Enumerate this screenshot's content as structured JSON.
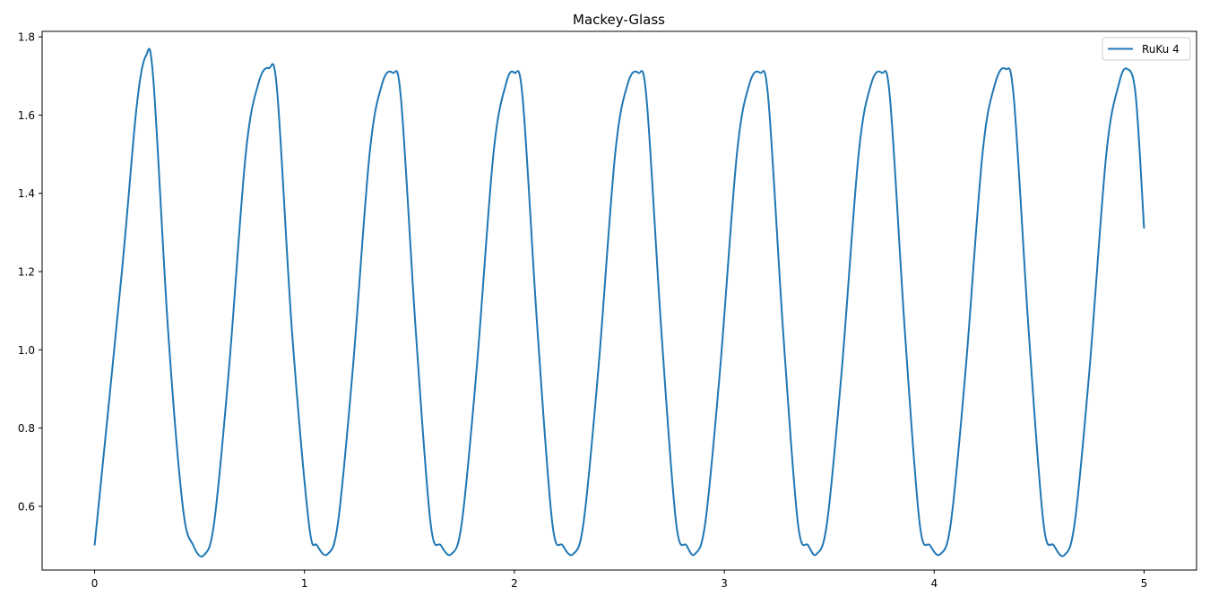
{
  "chart_data": {
    "type": "line",
    "title": "Mackey-Glass",
    "xlabel": "",
    "ylabel": "",
    "xlim": [
      -0.25,
      5.25
    ],
    "ylim": [
      0.437,
      1.814
    ],
    "xticks": [
      0,
      1,
      2,
      3,
      4,
      5
    ],
    "xtick_labels": [
      "0",
      "1",
      "2",
      "3",
      "4",
      "5"
    ],
    "yticks": [
      0.6,
      0.8,
      1.0,
      1.2,
      1.4,
      1.6,
      1.8
    ],
    "ytick_labels": [
      "0.6",
      "0.8",
      "1.0",
      "1.2",
      "1.4",
      "1.6",
      "1.8"
    ],
    "grid": false,
    "legend_position": "upper right",
    "series": [
      {
        "name": "RuKu 4",
        "color": "#1f77b4",
        "x": [
          0.0,
          0.13,
          0.2,
          0.245,
          0.28,
          0.35,
          0.42,
          0.47,
          0.52,
          0.57,
          0.64,
          0.72,
          0.78,
          0.83,
          0.87,
          0.94,
          1.02,
          1.06,
          1.11,
          1.16,
          1.23,
          1.31,
          1.37,
          1.42,
          1.46,
          1.53,
          1.6,
          1.65,
          1.7,
          1.75,
          1.82,
          1.9,
          1.96,
          2.0,
          2.04,
          2.11,
          2.18,
          2.23,
          2.28,
          2.33,
          2.4,
          2.48,
          2.54,
          2.59,
          2.63,
          2.7,
          2.77,
          2.82,
          2.86,
          2.91,
          2.98,
          3.06,
          3.12,
          3.17,
          3.21,
          3.28,
          3.35,
          3.4,
          3.44,
          3.49,
          3.56,
          3.64,
          3.7,
          3.75,
          3.79,
          3.86,
          3.93,
          3.98,
          4.03,
          4.08,
          4.15,
          4.23,
          4.29,
          4.34,
          4.38,
          4.45,
          4.52,
          4.57,
          4.62,
          4.67,
          4.74,
          4.82,
          4.88,
          4.92,
          4.96,
          5.0
        ],
        "y": [
          0.5,
          1.2,
          1.62,
          1.752,
          1.69,
          1.05,
          0.6,
          0.5,
          0.475,
          0.56,
          0.95,
          1.5,
          1.68,
          1.72,
          1.66,
          1.05,
          0.56,
          0.5,
          0.478,
          0.56,
          0.95,
          1.5,
          1.68,
          1.708,
          1.64,
          1.05,
          0.56,
          0.5,
          0.478,
          0.56,
          0.95,
          1.5,
          1.68,
          1.708,
          1.64,
          1.05,
          0.56,
          0.5,
          0.478,
          0.56,
          0.95,
          1.5,
          1.68,
          1.708,
          1.64,
          1.05,
          0.56,
          0.5,
          0.478,
          0.56,
          0.95,
          1.5,
          1.68,
          1.708,
          1.64,
          1.05,
          0.56,
          0.5,
          0.478,
          0.56,
          0.95,
          1.5,
          1.68,
          1.708,
          1.64,
          1.05,
          0.56,
          0.5,
          0.478,
          0.56,
          0.95,
          1.5,
          1.68,
          1.718,
          1.64,
          1.05,
          0.56,
          0.5,
          0.475,
          0.56,
          0.95,
          1.5,
          1.68,
          1.718,
          1.65,
          1.31
        ]
      }
    ]
  }
}
